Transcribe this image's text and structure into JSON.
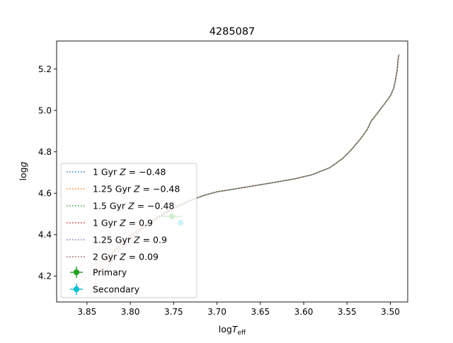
{
  "chart_data": {
    "type": "line",
    "title": "4285087",
    "xlabel": "logT_eff",
    "ylabel": "log g",
    "xlim": [
      3.885,
      3.48
    ],
    "ylim": [
      5.335,
      4.075
    ],
    "x_inverted": true,
    "y_inverted": true,
    "xticks": [
      3.85,
      3.8,
      3.75,
      3.7,
      3.65,
      3.6,
      3.55,
      3.5
    ],
    "xtick_labels": [
      "3.85",
      "3.80",
      "3.75",
      "3.70",
      "3.65",
      "3.60",
      "3.55",
      "3.50"
    ],
    "yticks": [
      4.2,
      4.4,
      4.6,
      4.8,
      5.0,
      5.2
    ],
    "ytick_labels": [
      "4.2",
      "4.4",
      "4.6",
      "4.8",
      "5.0",
      "5.2"
    ],
    "grid": false,
    "legend_position": "lower-left",
    "series": [
      {
        "name": "1 Gyr Z = −0.48",
        "legend_label": "1 Gyr ",
        "legend_math": "Z = −0.48",
        "color": "#1f77b4",
        "style": "dotted",
        "points": [
          [
            3.866,
            4.118
          ],
          [
            3.862,
            4.148
          ],
          [
            3.852,
            4.187
          ],
          [
            3.84,
            4.23
          ],
          [
            3.825,
            4.3
          ],
          [
            3.81,
            4.36
          ],
          [
            3.795,
            4.41
          ],
          [
            3.78,
            4.455
          ],
          [
            3.765,
            4.495
          ],
          [
            3.75,
            4.53
          ],
          [
            3.735,
            4.56
          ],
          [
            3.715,
            4.59
          ],
          [
            3.7,
            4.607
          ],
          [
            3.67,
            4.627
          ],
          [
            3.64,
            4.648
          ],
          [
            3.61,
            4.67
          ],
          [
            3.59,
            4.69
          ],
          [
            3.57,
            4.723
          ],
          [
            3.555,
            4.768
          ],
          [
            3.545,
            4.81
          ],
          [
            3.535,
            4.86
          ],
          [
            3.527,
            4.905
          ],
          [
            3.522,
            4.95
          ],
          [
            3.518,
            4.97
          ],
          [
            3.507,
            5.03
          ],
          [
            3.5,
            5.07
          ],
          [
            3.496,
            5.108
          ],
          [
            3.494,
            5.15
          ],
          [
            3.492,
            5.2
          ],
          [
            3.491,
            5.25
          ],
          [
            3.49,
            5.27
          ]
        ]
      },
      {
        "name": "1.25 Gyr Z = −0.48",
        "legend_label": "1.25 Gyr ",
        "legend_math": "Z = −0.48",
        "color": "#ff7f0e",
        "style": "dotted",
        "points": [
          [
            3.866,
            4.118
          ],
          [
            3.862,
            4.148
          ],
          [
            3.852,
            4.187
          ],
          [
            3.84,
            4.23
          ],
          [
            3.825,
            4.3
          ],
          [
            3.81,
            4.36
          ],
          [
            3.795,
            4.41
          ],
          [
            3.78,
            4.455
          ],
          [
            3.765,
            4.495
          ],
          [
            3.75,
            4.53
          ],
          [
            3.735,
            4.56
          ],
          [
            3.715,
            4.59
          ],
          [
            3.7,
            4.607
          ],
          [
            3.67,
            4.627
          ],
          [
            3.64,
            4.648
          ],
          [
            3.61,
            4.67
          ],
          [
            3.59,
            4.69
          ],
          [
            3.57,
            4.723
          ],
          [
            3.555,
            4.768
          ],
          [
            3.545,
            4.81
          ],
          [
            3.535,
            4.86
          ],
          [
            3.527,
            4.905
          ],
          [
            3.522,
            4.95
          ],
          [
            3.518,
            4.97
          ],
          [
            3.507,
            5.03
          ],
          [
            3.5,
            5.07
          ],
          [
            3.496,
            5.108
          ],
          [
            3.494,
            5.15
          ],
          [
            3.492,
            5.2
          ],
          [
            3.491,
            5.25
          ],
          [
            3.49,
            5.27
          ]
        ]
      },
      {
        "name": "1.5 Gyr Z = −0.48",
        "legend_label": "1.5 Gyr ",
        "legend_math": "Z = −0.48",
        "color": "#2ca02c",
        "style": "dotted",
        "points": [
          [
            3.845,
            4.25
          ],
          [
            3.825,
            4.3
          ],
          [
            3.81,
            4.36
          ],
          [
            3.795,
            4.41
          ],
          [
            3.78,
            4.455
          ],
          [
            3.765,
            4.495
          ],
          [
            3.75,
            4.53
          ],
          [
            3.735,
            4.56
          ],
          [
            3.715,
            4.59
          ],
          [
            3.7,
            4.607
          ],
          [
            3.67,
            4.627
          ],
          [
            3.64,
            4.648
          ],
          [
            3.61,
            4.67
          ],
          [
            3.59,
            4.69
          ],
          [
            3.57,
            4.723
          ],
          [
            3.555,
            4.768
          ],
          [
            3.545,
            4.81
          ],
          [
            3.535,
            4.86
          ],
          [
            3.527,
            4.905
          ],
          [
            3.522,
            4.95
          ],
          [
            3.518,
            4.97
          ],
          [
            3.507,
            5.03
          ],
          [
            3.5,
            5.07
          ],
          [
            3.496,
            5.108
          ],
          [
            3.494,
            5.15
          ],
          [
            3.492,
            5.2
          ],
          [
            3.491,
            5.25
          ],
          [
            3.49,
            5.27
          ]
        ]
      },
      {
        "name": "1 Gyr Z = 0.9",
        "legend_label": "1 Gyr ",
        "legend_math": "Z = 0.9",
        "color": "#d62728",
        "style": "dotted",
        "points": [
          [
            3.845,
            4.118
          ],
          [
            3.842,
            4.16
          ],
          [
            3.838,
            4.2
          ],
          [
            3.83,
            4.26
          ],
          [
            3.818,
            4.32
          ],
          [
            3.805,
            4.375
          ],
          [
            3.79,
            4.425
          ],
          [
            3.775,
            4.467
          ],
          [
            3.76,
            4.505
          ],
          [
            3.745,
            4.535
          ],
          [
            3.73,
            4.565
          ],
          [
            3.715,
            4.59
          ],
          [
            3.7,
            4.607
          ],
          [
            3.67,
            4.627
          ],
          [
            3.64,
            4.648
          ],
          [
            3.61,
            4.67
          ],
          [
            3.59,
            4.69
          ],
          [
            3.57,
            4.723
          ],
          [
            3.555,
            4.768
          ],
          [
            3.545,
            4.81
          ],
          [
            3.535,
            4.86
          ],
          [
            3.527,
            4.905
          ],
          [
            3.522,
            4.95
          ],
          [
            3.518,
            4.97
          ],
          [
            3.507,
            5.03
          ],
          [
            3.5,
            5.07
          ],
          [
            3.496,
            5.108
          ],
          [
            3.494,
            5.15
          ],
          [
            3.492,
            5.2
          ],
          [
            3.491,
            5.25
          ],
          [
            3.49,
            5.27
          ]
        ]
      },
      {
        "name": "1.25 Gyr Z = 0.9",
        "legend_label": "1.25 Gyr ",
        "legend_math": "Z = 0.9",
        "color": "#9467bd",
        "style": "dotted",
        "points": [
          [
            3.837,
            4.118
          ],
          [
            3.834,
            4.16
          ],
          [
            3.83,
            4.2
          ],
          [
            3.824,
            4.25
          ],
          [
            3.815,
            4.31
          ],
          [
            3.803,
            4.365
          ],
          [
            3.79,
            4.415
          ],
          [
            3.775,
            4.462
          ],
          [
            3.76,
            4.5
          ],
          [
            3.745,
            4.535
          ],
          [
            3.73,
            4.565
          ],
          [
            3.715,
            4.59
          ],
          [
            3.7,
            4.607
          ],
          [
            3.67,
            4.627
          ],
          [
            3.64,
            4.648
          ],
          [
            3.61,
            4.67
          ],
          [
            3.59,
            4.69
          ],
          [
            3.57,
            4.723
          ],
          [
            3.555,
            4.768
          ],
          [
            3.545,
            4.81
          ],
          [
            3.535,
            4.86
          ],
          [
            3.527,
            4.905
          ],
          [
            3.522,
            4.95
          ],
          [
            3.518,
            4.97
          ],
          [
            3.507,
            5.03
          ],
          [
            3.5,
            5.07
          ],
          [
            3.496,
            5.108
          ],
          [
            3.494,
            5.15
          ],
          [
            3.492,
            5.2
          ],
          [
            3.491,
            5.25
          ],
          [
            3.49,
            5.27
          ]
        ]
      },
      {
        "name": "2 Gyr Z = 0.09",
        "legend_label": "2 Gyr ",
        "legend_math": "Z = 0.09",
        "color": "#8c564b",
        "style": "dotted",
        "points": [
          [
            3.827,
            4.24
          ],
          [
            3.818,
            4.3
          ],
          [
            3.805,
            4.36
          ],
          [
            3.79,
            4.415
          ],
          [
            3.775,
            4.462
          ],
          [
            3.76,
            4.5
          ],
          [
            3.745,
            4.535
          ],
          [
            3.73,
            4.565
          ],
          [
            3.715,
            4.59
          ],
          [
            3.7,
            4.607
          ],
          [
            3.67,
            4.627
          ],
          [
            3.64,
            4.648
          ],
          [
            3.61,
            4.67
          ],
          [
            3.59,
            4.69
          ],
          [
            3.57,
            4.723
          ],
          [
            3.555,
            4.768
          ],
          [
            3.545,
            4.81
          ],
          [
            3.535,
            4.86
          ],
          [
            3.527,
            4.905
          ],
          [
            3.522,
            4.95
          ],
          [
            3.518,
            4.97
          ],
          [
            3.507,
            5.03
          ],
          [
            3.5,
            5.07
          ],
          [
            3.496,
            5.108
          ],
          [
            3.494,
            5.15
          ],
          [
            3.492,
            5.2
          ],
          [
            3.491,
            5.25
          ],
          [
            3.49,
            5.27
          ]
        ]
      }
    ],
    "markers": [
      {
        "name": "Primary",
        "color": "#2ca02c",
        "x": 3.752,
        "y": 4.488,
        "xerr": 0.012,
        "yerr": 0.01
      },
      {
        "name": "Secondary",
        "color": "#17becf",
        "x": 3.742,
        "y": 4.458,
        "xerr": 0.001,
        "yerr": 0.012
      }
    ]
  }
}
